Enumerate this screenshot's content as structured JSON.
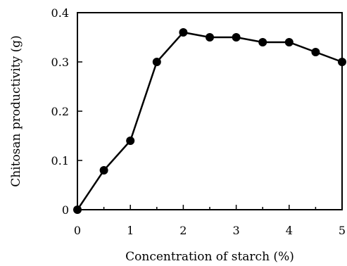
{
  "chart_data": {
    "type": "line",
    "xlabel": "Concentration of starch (%)",
    "ylabel": "Chitosan productivity (g)",
    "xlim": [
      0,
      5
    ],
    "ylim": [
      0,
      0.4
    ],
    "xticks": [
      0,
      1,
      2,
      3,
      4,
      5
    ],
    "xtick_labels": [
      "0",
      "1",
      "2",
      "3",
      "4",
      "5"
    ],
    "yticks": [
      0,
      0.1,
      0.2,
      0.3,
      0.4
    ],
    "ytick_labels": [
      "0",
      "0.1",
      "0.2",
      "0.3",
      "0.4"
    ],
    "grid": false,
    "series": [
      {
        "marker": "filled-circle",
        "color": "#000000",
        "x": [
          0,
          0.5,
          1,
          1.5,
          2,
          2.5,
          3,
          3.5,
          4,
          4.5,
          5
        ],
        "y": [
          0,
          0.08,
          0.14,
          0.3,
          0.36,
          0.35,
          0.35,
          0.34,
          0.34,
          0.32,
          0.3
        ]
      }
    ]
  }
}
